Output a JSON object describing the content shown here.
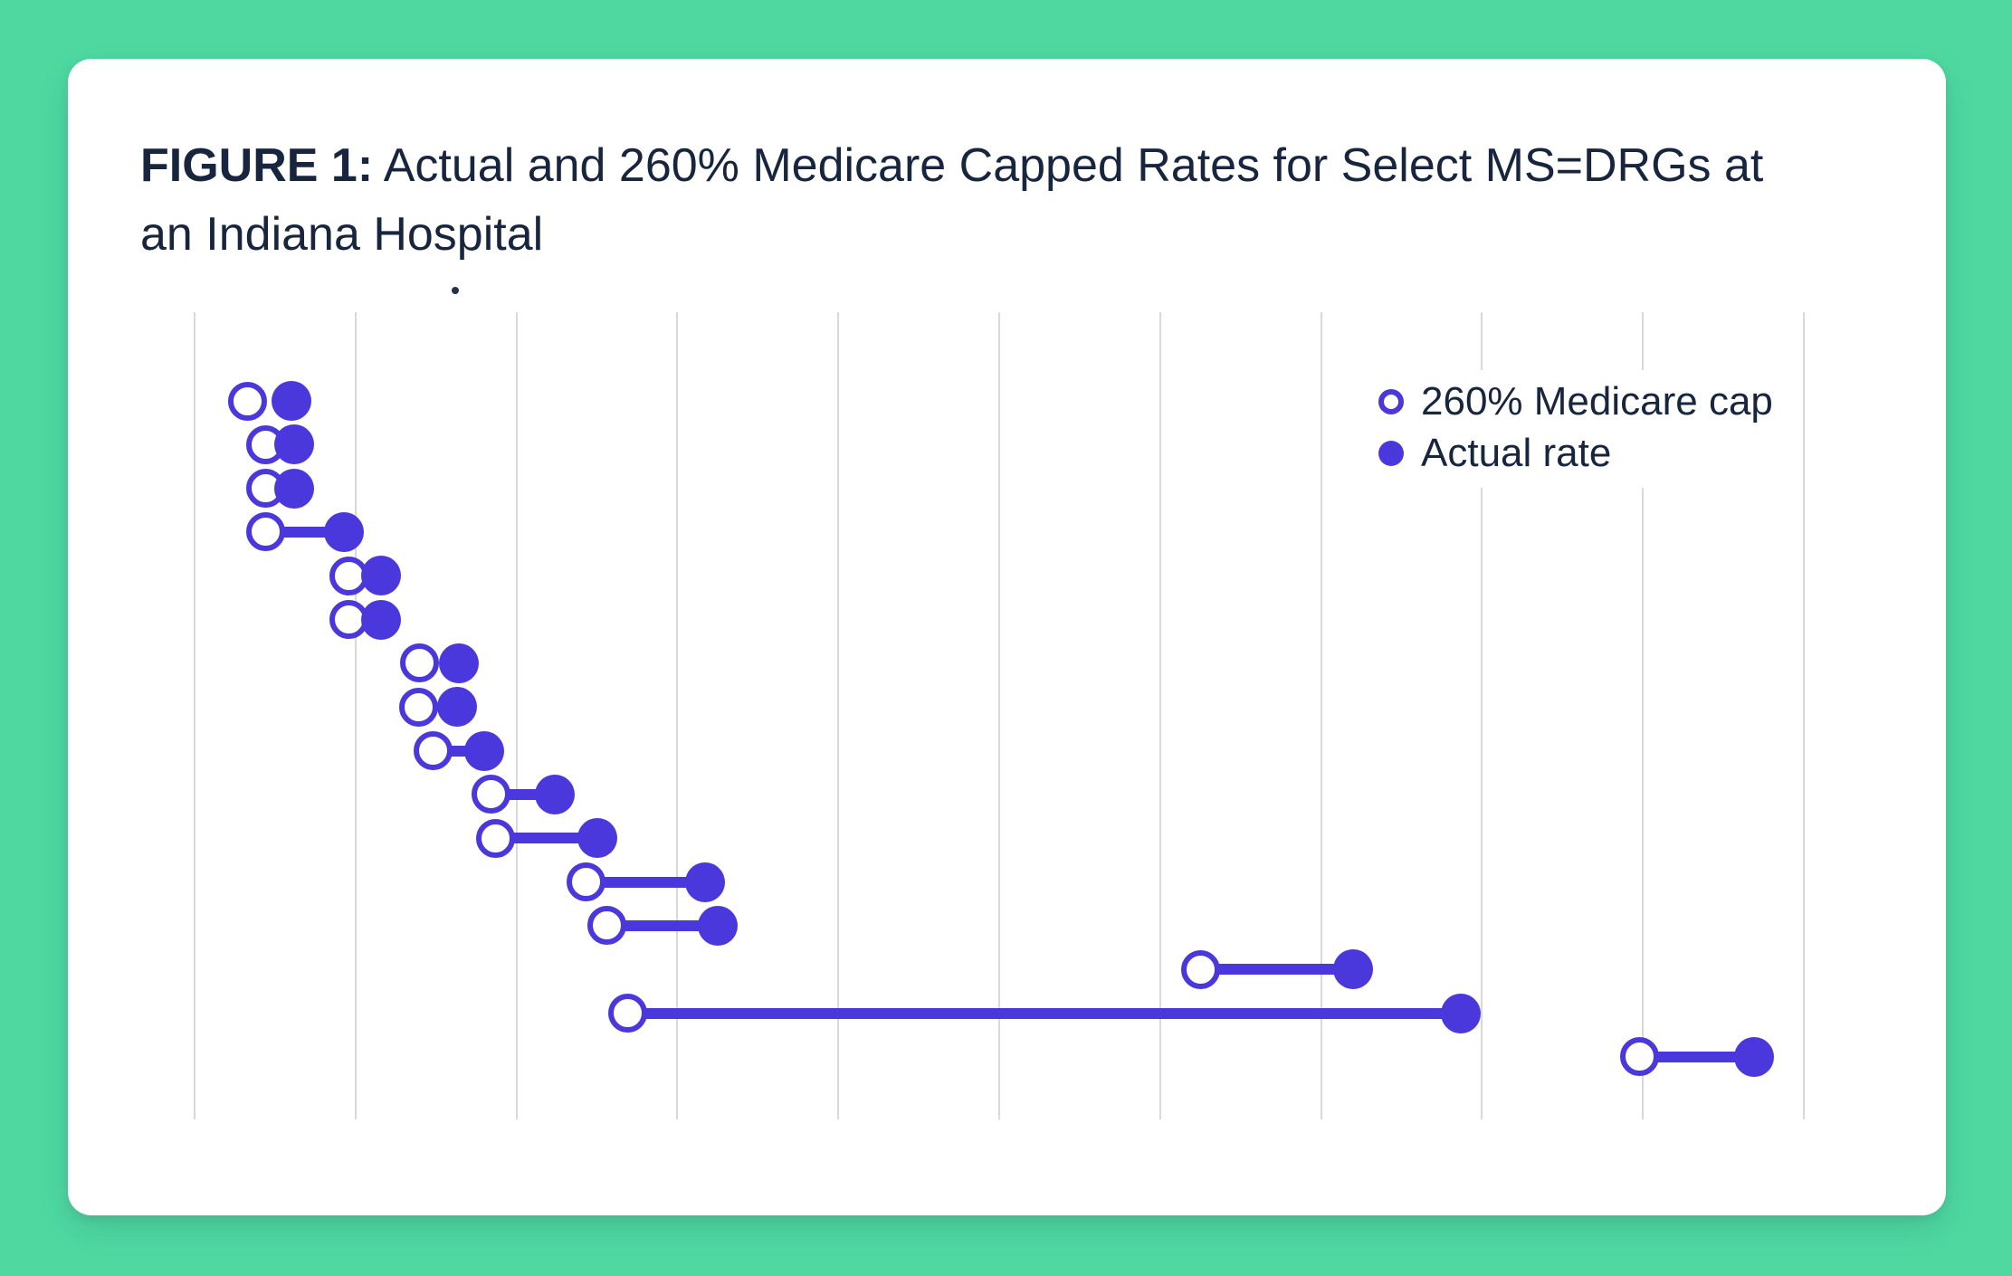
{
  "page": {
    "background_color": "#4FD9A1",
    "card_color": "#FFFFFF"
  },
  "colors": {
    "accent_purple": "#4A38DC",
    "text_navy": "#18253F",
    "gridline_gray": "#D9D9D9"
  },
  "title": {
    "prefix": "FIGURE 1:",
    "line1_rest": " Actual and 260% Medicare Capped Rates for Select MS=DRGs at",
    "line2": "an Indiana Hospital",
    "stray_mark": "."
  },
  "legend": {
    "items": [
      {
        "label": "260% Medicare cap",
        "marker": "open-circle"
      },
      {
        "label": "Actual rate",
        "marker": "filled-circle"
      }
    ]
  },
  "chart_data": {
    "type": "scatter",
    "subtype": "dumbbell",
    "title": "FIGURE 1: Actual and 260% Medicare Capped Rates for Select MS=DRGs at an Indiana Hospital",
    "orientation": "horizontal",
    "categories_note": "16 unlabeled rows (select MS-DRGs), no y-axis labels shown",
    "x_axis": {
      "tick_labels_visible": false,
      "gridline_count": 11,
      "unit": "gridline index (0-10), no numeric labels shown in figure"
    },
    "grid": "vertical gridlines only",
    "legend_position": "top-right inside plot",
    "series": [
      {
        "name": "260% Medicare cap",
        "marker": "open-circle",
        "values": [
          0.33,
          0.44,
          0.44,
          0.44,
          0.96,
          0.96,
          1.4,
          1.39,
          1.48,
          1.84,
          1.87,
          2.43,
          2.56,
          6.25,
          2.69,
          8.98
        ]
      },
      {
        "name": "Actual rate",
        "marker": "filled-circle",
        "values": [
          0.6,
          0.62,
          0.62,
          0.93,
          1.16,
          1.16,
          1.64,
          1.63,
          1.8,
          2.24,
          2.5,
          3.17,
          3.25,
          7.2,
          7.87,
          9.69
        ]
      }
    ]
  }
}
